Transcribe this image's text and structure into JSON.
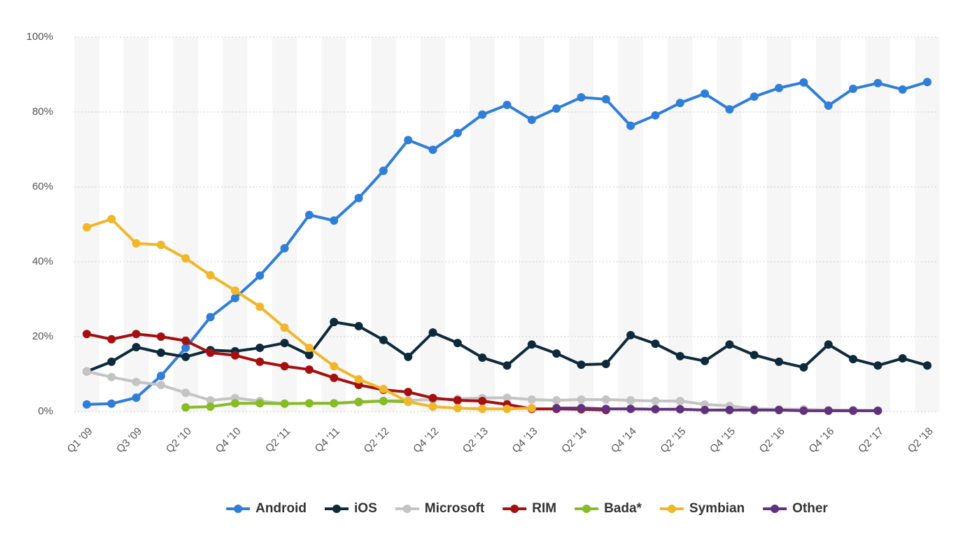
{
  "chart_data": {
    "type": "line",
    "categories": [
      "Q1 '09",
      null,
      "Q3 '09",
      null,
      "Q2 '10",
      null,
      "Q4 '10",
      null,
      "Q2 '11",
      null,
      "Q4 '11",
      null,
      "Q2 '12",
      null,
      "Q4 '12",
      null,
      "Q2 '13",
      null,
      "Q4 '13",
      null,
      "Q2 '14",
      null,
      "Q4 '14",
      null,
      "Q2 '15",
      null,
      "Q4 '15",
      null,
      "Q2 '16",
      null,
      "Q4 '16",
      null,
      "Q2 '17",
      null,
      "Q2 '18"
    ],
    "ylim": [
      0,
      100
    ],
    "yticks": [
      {
        "value": 0,
        "label": "0%"
      },
      {
        "value": 20,
        "label": "20%"
      },
      {
        "value": 40,
        "label": "40%"
      },
      {
        "value": 60,
        "label": "60%"
      },
      {
        "value": 80,
        "label": "80%"
      },
      {
        "value": 100,
        "label": "100%"
      }
    ],
    "grid": true,
    "legend": "bottom",
    "series": [
      {
        "name": "Android",
        "color": "#2f7ed8",
        "values": [
          1.9,
          2.1,
          3.7,
          9.5,
          17.0,
          25.2,
          30.3,
          36.3,
          43.6,
          52.5,
          51.0,
          57.0,
          64.3,
          72.5,
          69.9,
          74.4,
          79.3,
          81.9,
          77.9,
          80.9,
          83.9,
          83.4,
          76.3,
          79.1,
          82.4,
          84.9,
          80.7,
          84.1,
          86.4,
          87.9,
          81.7,
          86.2,
          87.7,
          86.0,
          88.0
        ]
      },
      {
        "name": "iOS",
        "color": "#0d2a3c",
        "values": [
          10.7,
          13.3,
          17.2,
          15.7,
          14.6,
          16.4,
          16.1,
          17.0,
          18.3,
          15.1,
          23.9,
          22.8,
          19.1,
          14.6,
          21.1,
          18.3,
          14.4,
          12.3,
          17.9,
          15.5,
          12.5,
          12.7,
          20.4,
          18.1,
          14.8,
          13.5,
          17.9,
          15.1,
          13.3,
          11.8,
          17.9,
          14.0,
          12.3,
          14.2,
          12.3
        ]
      },
      {
        "name": "Microsoft",
        "color": "#c4c4c4",
        "values": [
          10.7,
          9.2,
          7.9,
          7.1,
          5.0,
          3.0,
          3.6,
          2.8,
          2.1,
          2.2,
          2.2,
          2.4,
          2.8,
          3.0,
          3.2,
          3.4,
          3.6,
          3.7,
          3.2,
          3.0,
          3.2,
          3.2,
          3.0,
          2.8,
          2.8,
          1.9,
          1.5,
          0.7,
          0.6,
          0.6,
          0.4,
          0.4,
          0.2,
          null,
          null
        ]
      },
      {
        "name": "RIM",
        "color": "#a50f0f",
        "values": [
          20.7,
          19.3,
          20.7,
          20.0,
          18.9,
          15.7,
          15.0,
          13.3,
          12.1,
          11.2,
          9.0,
          7.1,
          5.8,
          5.2,
          3.6,
          3.0,
          2.8,
          1.9,
          0.7,
          0.7,
          0.6,
          0.4,
          null,
          null,
          null,
          null,
          null,
          null,
          null,
          null,
          null,
          null,
          null,
          null,
          null
        ]
      },
      {
        "name": "Bada*",
        "color": "#86bc24",
        "values": [
          null,
          null,
          null,
          null,
          1.1,
          1.3,
          2.2,
          2.2,
          2.1,
          2.2,
          2.2,
          2.6,
          2.8,
          2.6,
          null,
          null,
          null,
          null,
          null,
          null,
          null,
          null,
          null,
          null,
          null,
          null,
          null,
          null,
          null,
          null,
          null,
          null,
          null,
          null,
          null
        ]
      },
      {
        "name": "Symbian",
        "color": "#f1b72b",
        "values": [
          49.2,
          51.4,
          44.9,
          44.5,
          40.9,
          36.4,
          32.3,
          28.0,
          22.4,
          17.0,
          12.1,
          8.6,
          6.0,
          2.6,
          1.3,
          0.9,
          0.7,
          0.7,
          0.9,
          null,
          null,
          null,
          null,
          null,
          null,
          null,
          null,
          null,
          null,
          null,
          null,
          null,
          null,
          null,
          null
        ]
      },
      {
        "name": "Other",
        "color": "#62317e",
        "values": [
          null,
          null,
          null,
          null,
          null,
          null,
          null,
          null,
          null,
          null,
          null,
          null,
          null,
          null,
          null,
          null,
          null,
          null,
          null,
          0.9,
          0.9,
          0.7,
          0.7,
          0.6,
          0.6,
          0.4,
          0.4,
          0.4,
          0.4,
          0.2,
          0.2,
          0.2,
          0.2,
          null,
          null
        ]
      }
    ]
  }
}
